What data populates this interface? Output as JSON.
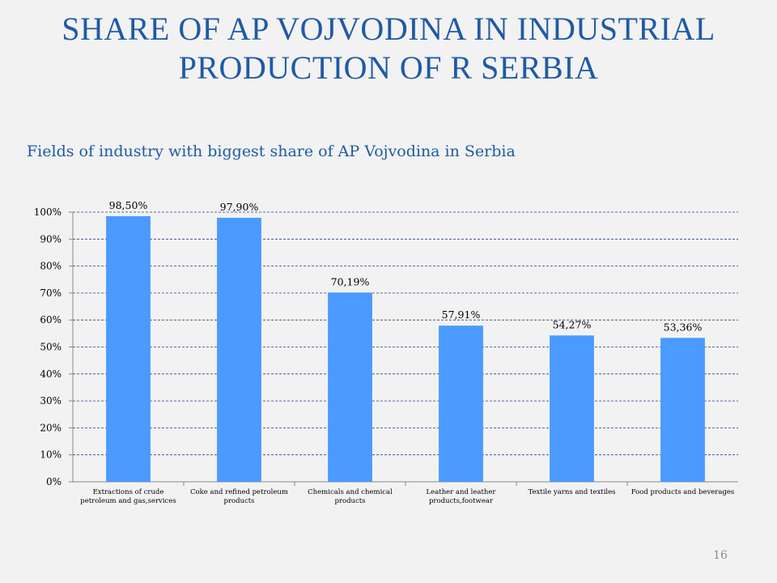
{
  "slide": {
    "title_line1": "SHARE OF AP VOJVODINA IN INDUSTRIAL",
    "title_line2": "PRODUCTION OF R SERBIA",
    "page_number": "16"
  },
  "colors": {
    "title": "#1f5aa6",
    "bar": "#4a9aff",
    "gridline": "#1f3f8f",
    "background": "#f2f2f2"
  },
  "chart_data": {
    "type": "bar",
    "title": "Fields of industry with biggest share of AP Vojvodina in Serbia",
    "xlabel": "",
    "ylabel": "",
    "ylim": [
      0,
      100
    ],
    "yticks": [
      0,
      10,
      20,
      30,
      40,
      50,
      60,
      70,
      80,
      90,
      100
    ],
    "ytick_labels": [
      "0%",
      "10%",
      "20%",
      "30%",
      "40%",
      "50%",
      "60%",
      "70%",
      "80%",
      "90%",
      "100%"
    ],
    "grid": true,
    "categories": [
      [
        "Extractions of crude",
        "petroleum and gas,services"
      ],
      [
        "Coke and refined petroleum",
        "products"
      ],
      [
        "Chemicals and chemical",
        "products"
      ],
      [
        "Leather and leather",
        "products,footwear"
      ],
      [
        "Textile yarns and textiles"
      ],
      [
        "Food products and beverages"
      ]
    ],
    "values": [
      98.5,
      97.9,
      70.19,
      57.91,
      54.27,
      53.36
    ],
    "data_labels": [
      "98,50%",
      "97,90%",
      "70,19%",
      "57,91%",
      "54,27%",
      "53,36%"
    ]
  }
}
